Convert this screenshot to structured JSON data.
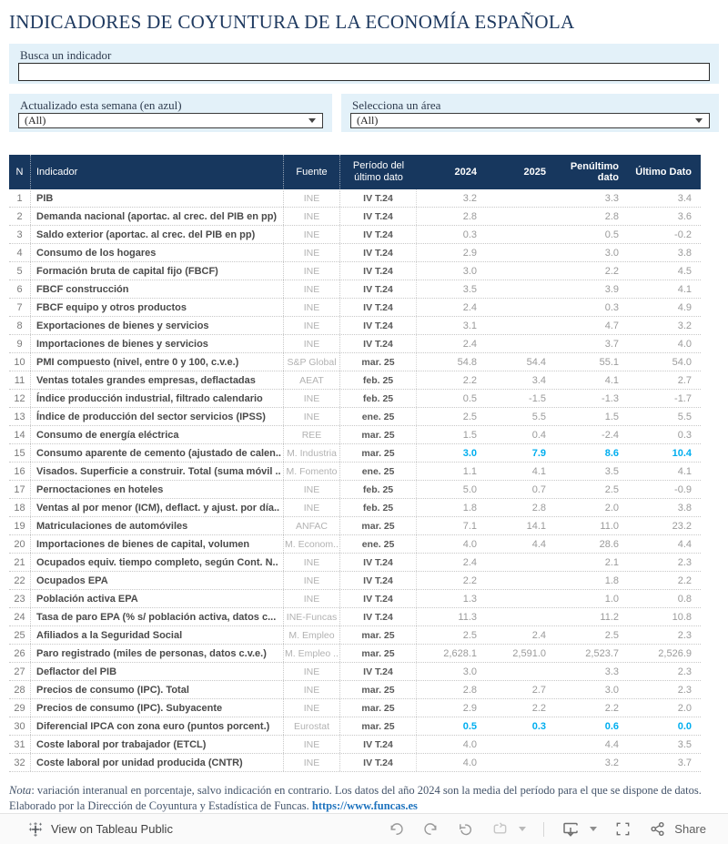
{
  "title": "INDICADORES DE COYUNTURA DE LA ECONOMÍA ESPAÑOLA",
  "search": {
    "label": "Busca un indicador",
    "value": ""
  },
  "filters": [
    {
      "label": "Actualizado esta semana (en azul)",
      "value": "(All)"
    },
    {
      "label": "Selecciona un área",
      "value": "(All)"
    }
  ],
  "table": {
    "columns": [
      "N",
      "Indicador",
      "Fuente",
      "Período del último dato",
      "2024",
      "2025",
      "Penúltimo dato",
      "Último Dato"
    ],
    "rows": [
      {
        "n": "1",
        "indicador": "PIB",
        "fuente": "INE",
        "periodo": "IV T.24",
        "y2024": "3.2",
        "y2025": "",
        "penultimo": "3.3",
        "ultimo": "3.4",
        "highlight": false
      },
      {
        "n": "2",
        "indicador": "Demanda nacional (aportac. al crec. del PIB en pp)",
        "fuente": "INE",
        "periodo": "IV T.24",
        "y2024": "2.8",
        "y2025": "",
        "penultimo": "2.8",
        "ultimo": "3.6",
        "highlight": false
      },
      {
        "n": "3",
        "indicador": "Saldo exterior (aportac. al crec. del PIB en pp)",
        "fuente": "INE",
        "periodo": "IV T.24",
        "y2024": "0.3",
        "y2025": "",
        "penultimo": "0.5",
        "ultimo": "-0.2",
        "highlight": false
      },
      {
        "n": "4",
        "indicador": "Consumo de los hogares",
        "fuente": "INE",
        "periodo": "IV T.24",
        "y2024": "2.9",
        "y2025": "",
        "penultimo": "3.0",
        "ultimo": "3.8",
        "highlight": false
      },
      {
        "n": "5",
        "indicador": "Formación bruta de capital fijo (FBCF)",
        "fuente": "INE",
        "periodo": "IV T.24",
        "y2024": "3.0",
        "y2025": "",
        "penultimo": "2.2",
        "ultimo": "4.5",
        "highlight": false
      },
      {
        "n": "6",
        "indicador": "FBCF construcción",
        "fuente": "INE",
        "periodo": "IV T.24",
        "y2024": "3.5",
        "y2025": "",
        "penultimo": "3.9",
        "ultimo": "4.1",
        "highlight": false
      },
      {
        "n": "7",
        "indicador": "FBCF equipo y otros productos",
        "fuente": "INE",
        "periodo": "IV T.24",
        "y2024": "2.4",
        "y2025": "",
        "penultimo": "0.3",
        "ultimo": "4.9",
        "highlight": false
      },
      {
        "n": "8",
        "indicador": "Exportaciones de bienes y servicios",
        "fuente": "INE",
        "periodo": "IV T.24",
        "y2024": "3.1",
        "y2025": "",
        "penultimo": "4.7",
        "ultimo": "3.2",
        "highlight": false
      },
      {
        "n": "9",
        "indicador": "Importaciones de bienes y servicios",
        "fuente": "INE",
        "periodo": "IV T.24",
        "y2024": "2.4",
        "y2025": "",
        "penultimo": "3.7",
        "ultimo": "4.0",
        "highlight": false
      },
      {
        "n": "10",
        "indicador": "PMI compuesto (nivel, entre 0 y 100, c.v.e.)",
        "fuente": "S&P Global",
        "periodo": "mar. 25",
        "y2024": "54.8",
        "y2025": "54.4",
        "penultimo": "55.1",
        "ultimo": "54.0",
        "highlight": false
      },
      {
        "n": "11",
        "indicador": "Ventas totales grandes empresas, deflactadas",
        "fuente": "AEAT",
        "periodo": "feb. 25",
        "y2024": "2.2",
        "y2025": "3.4",
        "penultimo": "4.1",
        "ultimo": "2.7",
        "highlight": false
      },
      {
        "n": "12",
        "indicador": "Índice producción industrial, filtrado calendario",
        "fuente": "INE",
        "periodo": "feb. 25",
        "y2024": "0.5",
        "y2025": "-1.5",
        "penultimo": "-1.3",
        "ultimo": "-1.7",
        "highlight": false
      },
      {
        "n": "13",
        "indicador": "Índice de producción del sector servicios (IPSS)",
        "fuente": "INE",
        "periodo": "ene. 25",
        "y2024": "2.5",
        "y2025": "5.5",
        "penultimo": "1.5",
        "ultimo": "5.5",
        "highlight": false
      },
      {
        "n": "14",
        "indicador": "Consumo de energía eléctrica",
        "fuente": "REE",
        "periodo": "mar. 25",
        "y2024": "1.5",
        "y2025": "0.4",
        "penultimo": "-2.4",
        "ultimo": "0.3",
        "highlight": false
      },
      {
        "n": "15",
        "indicador": "Consumo aparente de cemento (ajustado de calen..",
        "fuente": "M. Industria",
        "periodo": "mar. 25",
        "y2024": "3.0",
        "y2025": "7.9",
        "penultimo": "8.6",
        "ultimo": "10.4",
        "highlight": true
      },
      {
        "n": "16",
        "indicador": "Visados. Superficie a construir. Total (suma móvil ..",
        "fuente": "M. Fomento",
        "periodo": "ene. 25",
        "y2024": "1.1",
        "y2025": "4.1",
        "penultimo": "3.5",
        "ultimo": "4.1",
        "highlight": false
      },
      {
        "n": "17",
        "indicador": "Pernoctaciones en hoteles",
        "fuente": "INE",
        "periodo": "feb. 25",
        "y2024": "5.0",
        "y2025": "0.7",
        "penultimo": "2.5",
        "ultimo": "-0.9",
        "highlight": false
      },
      {
        "n": "18",
        "indicador": "Ventas al por menor (ICM), deflact. y ajust. por día..",
        "fuente": "INE",
        "periodo": "feb. 25",
        "y2024": "1.8",
        "y2025": "2.8",
        "penultimo": "2.0",
        "ultimo": "3.8",
        "highlight": false
      },
      {
        "n": "19",
        "indicador": "Matriculaciones de automóviles",
        "fuente": "ANFAC",
        "periodo": "mar. 25",
        "y2024": "7.1",
        "y2025": "14.1",
        "penultimo": "11.0",
        "ultimo": "23.2",
        "highlight": false
      },
      {
        "n": "20",
        "indicador": "Importaciones de bienes de capital, volumen",
        "fuente": "M. Econom..",
        "periodo": "ene. 25",
        "y2024": "4.0",
        "y2025": "4.4",
        "penultimo": "28.6",
        "ultimo": "4.4",
        "highlight": false
      },
      {
        "n": "21",
        "indicador": "Ocupados equiv. tiempo completo, según Cont. N..",
        "fuente": "INE",
        "periodo": "IV T.24",
        "y2024": "2.4",
        "y2025": "",
        "penultimo": "2.1",
        "ultimo": "2.3",
        "highlight": false
      },
      {
        "n": "22",
        "indicador": "Ocupados EPA",
        "fuente": "INE",
        "periodo": "IV T.24",
        "y2024": "2.2",
        "y2025": "",
        "penultimo": "1.8",
        "ultimo": "2.2",
        "highlight": false
      },
      {
        "n": "23",
        "indicador": "Población activa EPA",
        "fuente": "INE",
        "periodo": "IV T.24",
        "y2024": "1.3",
        "y2025": "",
        "penultimo": "1.0",
        "ultimo": "0.8",
        "highlight": false
      },
      {
        "n": "24",
        "indicador": "Tasa de paro EPA (% s/ población activa, datos c...",
        "fuente": "INE-Funcas",
        "periodo": "IV T.24",
        "y2024": "11.3",
        "y2025": "",
        "penultimo": "11.2",
        "ultimo": "10.8",
        "highlight": false
      },
      {
        "n": "25",
        "indicador": "Afiliados a la Seguridad Social",
        "fuente": "M. Empleo",
        "periodo": "mar. 25",
        "y2024": "2.5",
        "y2025": "2.4",
        "penultimo": "2.5",
        "ultimo": "2.3",
        "highlight": false
      },
      {
        "n": "26",
        "indicador": "Paro registrado (miles de personas, datos c.v.e.)",
        "fuente": "M. Empleo ..",
        "periodo": "mar. 25",
        "y2024": "2,628.1",
        "y2025": "2,591.0",
        "penultimo": "2,523.7",
        "ultimo": "2,526.9",
        "highlight": false
      },
      {
        "n": "27",
        "indicador": "Deflactor del PIB",
        "fuente": "INE",
        "periodo": "IV T.24",
        "y2024": "3.0",
        "y2025": "",
        "penultimo": "3.3",
        "ultimo": "2.3",
        "highlight": false
      },
      {
        "n": "28",
        "indicador": "Precios de consumo (IPC). Total",
        "fuente": "INE",
        "periodo": "mar. 25",
        "y2024": "2.8",
        "y2025": "2.7",
        "penultimo": "3.0",
        "ultimo": "2.3",
        "highlight": false
      },
      {
        "n": "29",
        "indicador": "Precios de consumo (IPC). Subyacente",
        "fuente": "INE",
        "periodo": "mar. 25",
        "y2024": "2.9",
        "y2025": "2.2",
        "penultimo": "2.2",
        "ultimo": "2.0",
        "highlight": false
      },
      {
        "n": "30",
        "indicador": "Diferencial IPCA con zona euro (puntos porcent.)",
        "fuente": "Eurostat",
        "periodo": "mar. 25",
        "y2024": "0.5",
        "y2025": "0.3",
        "penultimo": "0.6",
        "ultimo": "0.0",
        "highlight": true
      },
      {
        "n": "31",
        "indicador": "Coste laboral por trabajador (ETCL)",
        "fuente": "INE",
        "periodo": "IV T.24",
        "y2024": "4.0",
        "y2025": "",
        "penultimo": "4.4",
        "ultimo": "3.5",
        "highlight": false
      },
      {
        "n": "32",
        "indicador": "Coste laboral por unidad producida (CNTR)",
        "fuente": "INE",
        "periodo": "IV T.24",
        "y2024": "4.0",
        "y2025": "",
        "penultimo": "3.2",
        "ultimo": "3.7",
        "highlight": false
      }
    ]
  },
  "notes": {
    "nota": "Nota",
    "line1": ": variación interanual en porcentaje, salvo indicación en contrario. Los datos del año 2024 son la media del período para el que se dispone de datos.",
    "line2": "Elaborado por la Dirección de Coyuntura y Estadística de Funcas. ",
    "link": "https://www.funcas.es"
  },
  "toolbar": {
    "view_label": "View on Tableau Public",
    "share_label": "Share",
    "icons": [
      "tableau-logo-icon",
      "undo-icon",
      "redo-icon",
      "revert-icon",
      "replay-icon",
      "chevron-down-icon",
      "download-icon",
      "chevron-down-icon",
      "fullscreen-icon",
      "share-icon"
    ]
  },
  "colors": {
    "header_bg": "#17375E",
    "accent_cyan": "#00AEEF",
    "panel_blue": "#E3F1F9",
    "link_blue": "#1E73BE"
  }
}
